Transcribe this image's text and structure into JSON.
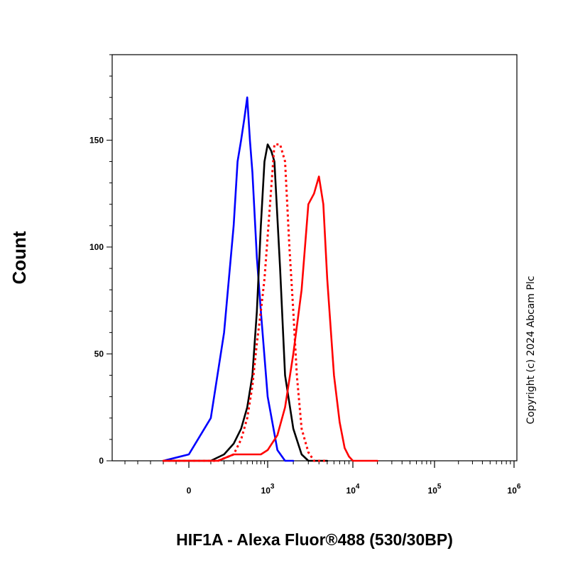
{
  "chart_data": {
    "type": "line",
    "title": "",
    "xlabel": "HIF1A - Alexa Fluor®488 (530/30BP)",
    "ylabel": "Count",
    "x_scale": "biexponential",
    "ylim": [
      0,
      190
    ],
    "y_ticks": [
      {
        "value": 0,
        "label": "0"
      },
      {
        "value": 50,
        "label": "50"
      },
      {
        "value": 100,
        "label": "100"
      },
      {
        "value": 150,
        "label": "150"
      }
    ],
    "x_ticks": [
      {
        "value": 0,
        "label": "0",
        "exp": ""
      },
      {
        "value": 1000,
        "label": "10",
        "exp": "3"
      },
      {
        "value": 10000,
        "label": "10",
        "exp": "4"
      },
      {
        "value": 100000,
        "label": "10",
        "exp": "5"
      },
      {
        "value": 1000000,
        "label": "10",
        "exp": "6"
      }
    ],
    "grid": false,
    "legend": "none",
    "annotation": "Copyright (c) 2024 Abcam Plc",
    "series": [
      {
        "color": "#0000ff",
        "style": "solid",
        "x": [
          -200,
          0,
          100,
          200,
          300,
          350,
          400,
          450,
          500,
          550,
          600,
          700,
          800,
          1000,
          1300,
          1600,
          2000
        ],
        "y": [
          0,
          3,
          20,
          60,
          110,
          140,
          150,
          160,
          170,
          150,
          135,
          95,
          70,
          30,
          5,
          0,
          0
        ]
      },
      {
        "color": "#000000",
        "style": "solid",
        "x": [
          -200,
          100,
          200,
          300,
          400,
          500,
          600,
          700,
          800,
          900,
          1000,
          1100,
          1200,
          1400,
          1600,
          2000,
          2500,
          3000,
          5000
        ],
        "y": [
          0,
          0,
          3,
          8,
          15,
          25,
          40,
          70,
          110,
          140,
          148,
          145,
          140,
          90,
          40,
          15,
          3,
          0,
          0
        ]
      },
      {
        "color": "#ff0000",
        "style": "dotted",
        "x": [
          -200,
          150,
          300,
          400,
          500,
          600,
          700,
          800,
          900,
          1000,
          1200,
          1400,
          1600,
          1800,
          2000,
          2200,
          2500,
          3000,
          3500,
          5000
        ],
        "y": [
          0,
          0,
          3,
          10,
          20,
          35,
          55,
          70,
          85,
          105,
          148,
          148,
          140,
          100,
          70,
          40,
          15,
          4,
          0,
          0
        ]
      },
      {
        "color": "#ff0000",
        "style": "solid",
        "x": [
          -200,
          150,
          300,
          500,
          800,
          1000,
          1300,
          1600,
          2000,
          2500,
          3000,
          3500,
          4000,
          4500,
          5000,
          6000,
          7000,
          8000,
          9000,
          10000,
          20000
        ],
        "y": [
          0,
          0,
          3,
          3,
          3,
          5,
          12,
          25,
          50,
          80,
          120,
          125,
          133,
          120,
          85,
          40,
          18,
          6,
          2,
          0,
          0
        ]
      }
    ]
  }
}
